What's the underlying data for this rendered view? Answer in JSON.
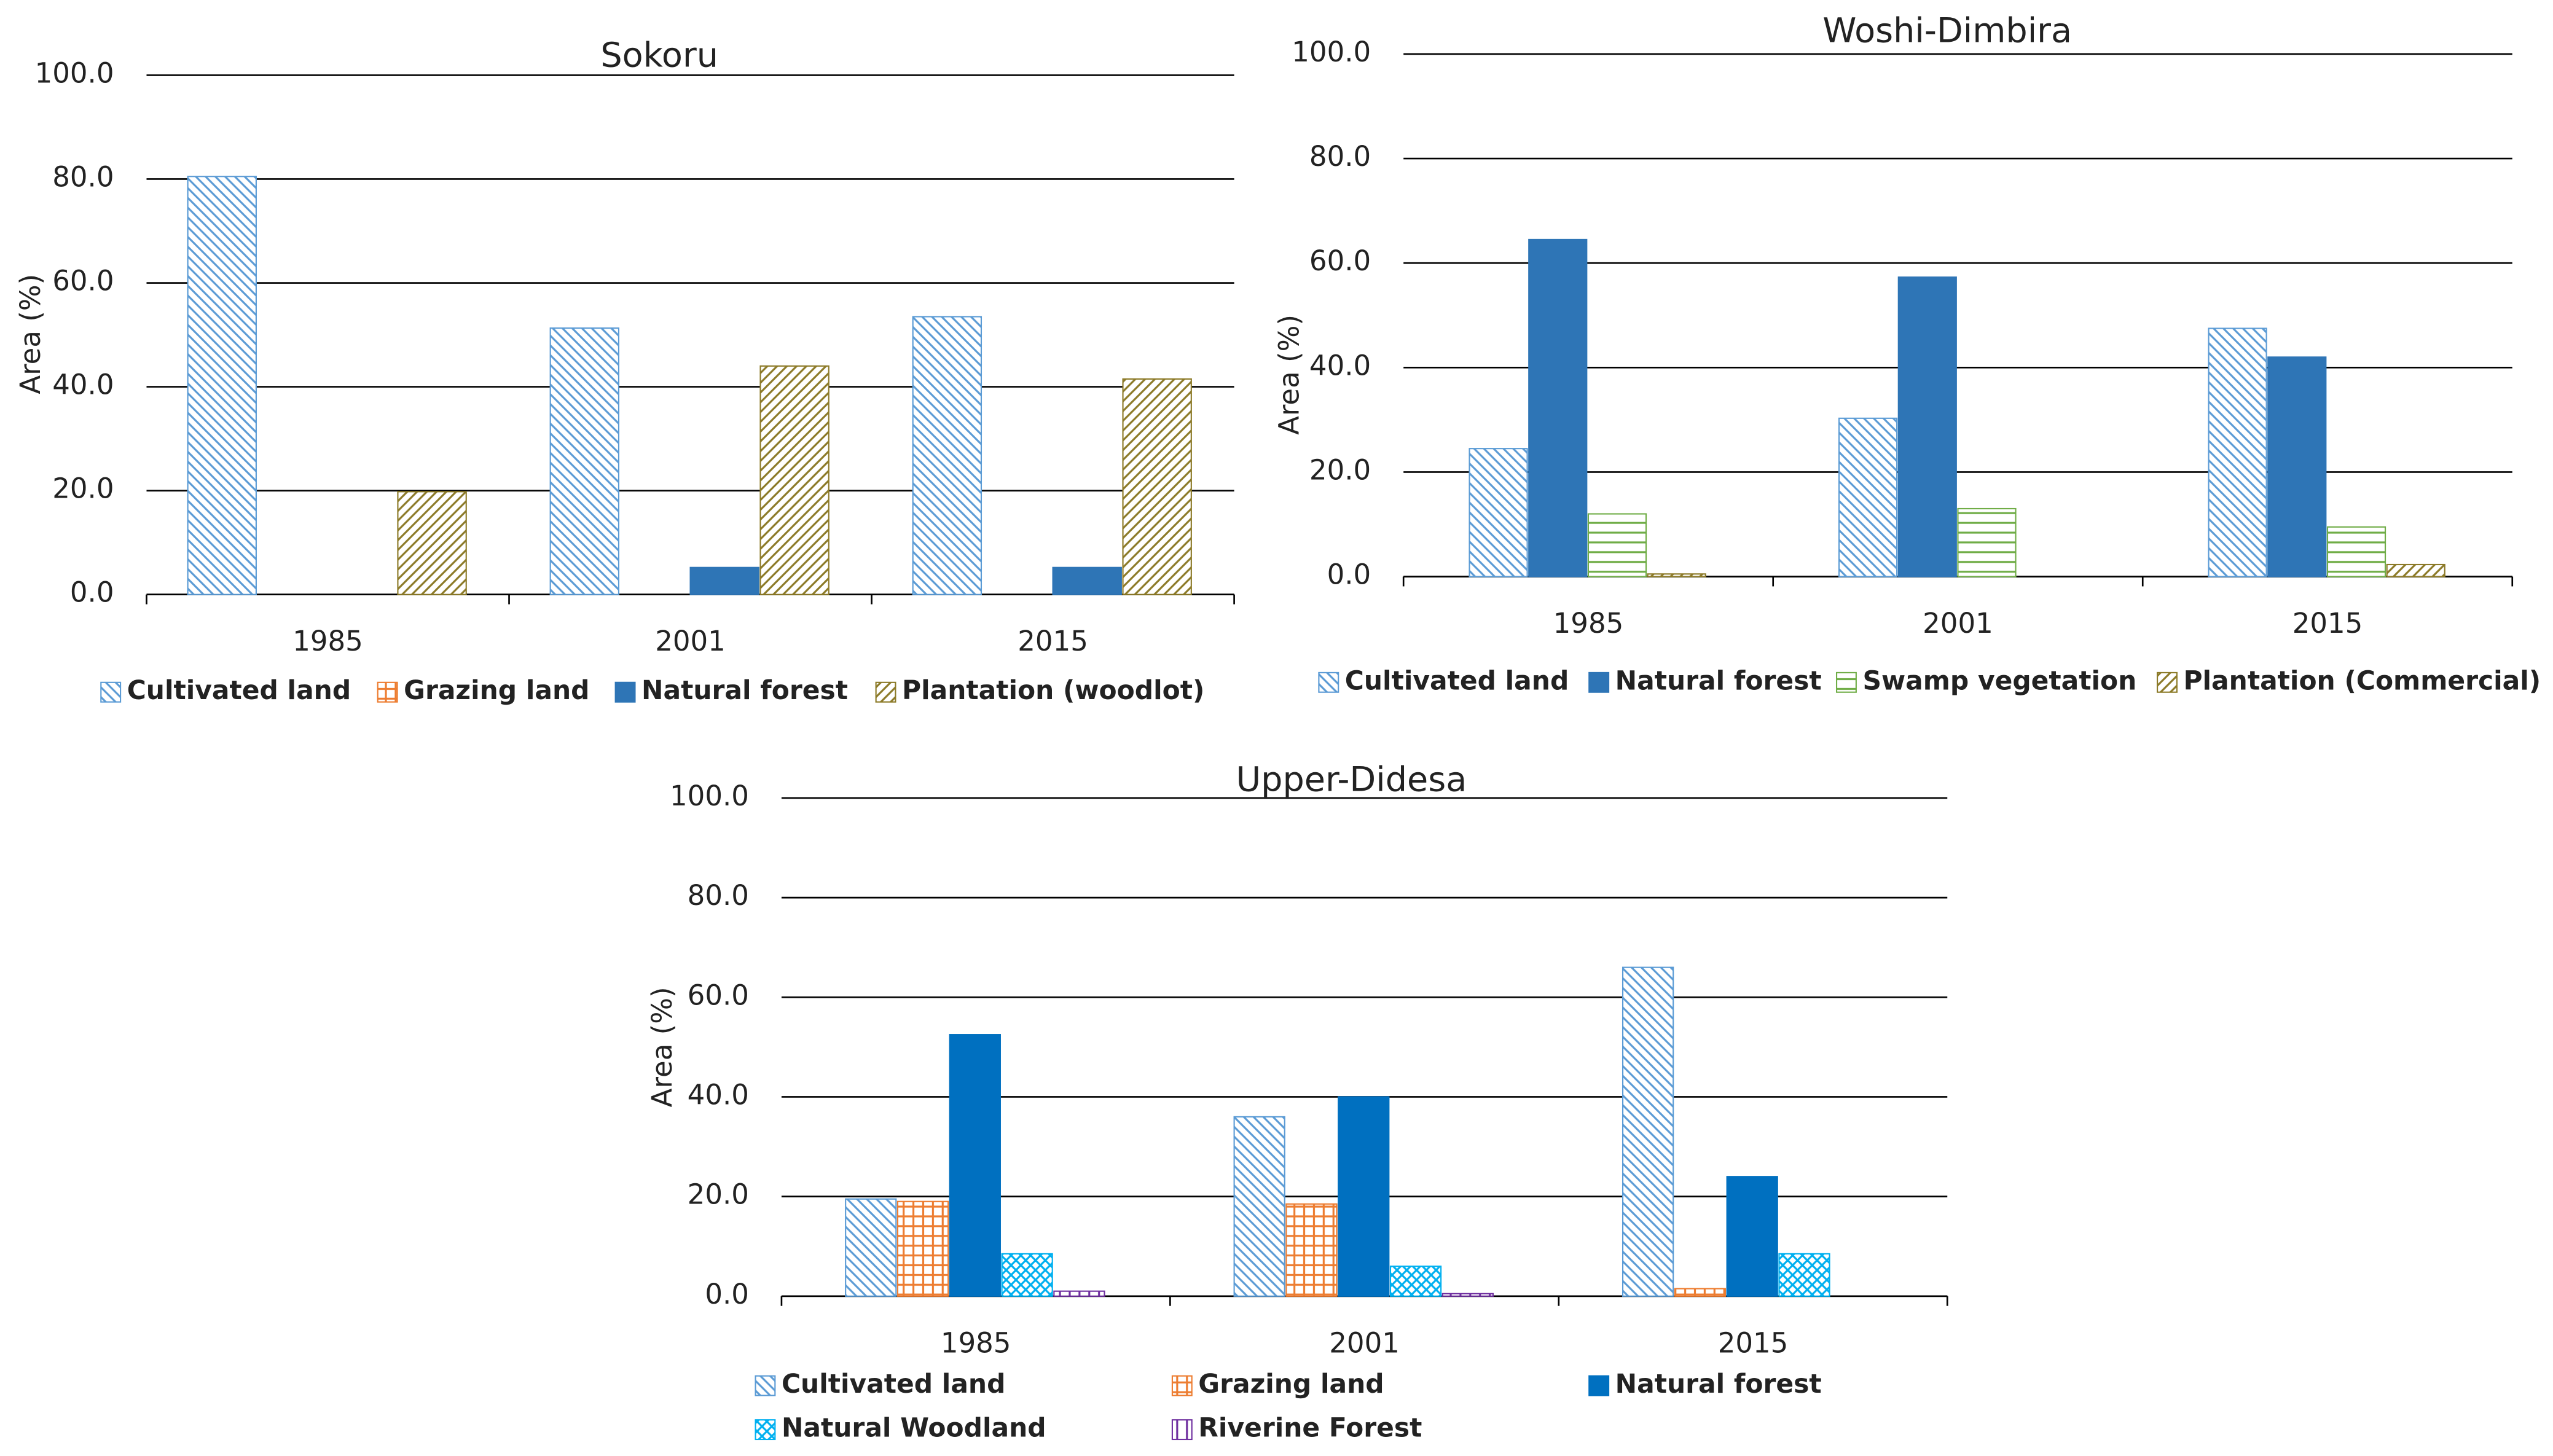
{
  "chart_data": [
    {
      "type": "bar",
      "title": "Sokoru",
      "y_label": "Area (%)",
      "categories": [
        "1985",
        "2001",
        "2015"
      ],
      "series": [
        {
          "name": "Cultivated land",
          "color": "#5b9bd5",
          "pattern": "diag-down",
          "values": [
            80.5,
            51.3,
            53.5
          ]
        },
        {
          "name": "Grazing land",
          "color": "#ed7d31",
          "pattern": "grid",
          "values": [
            0,
            0,
            0
          ]
        },
        {
          "name": "Natural forest",
          "color": "#2e75b6",
          "pattern": "solid",
          "values": [
            0,
            5.2,
            5.2
          ]
        },
        {
          "name": "Plantation (woodlot)",
          "color": "#8c7a28",
          "pattern": "diag-up",
          "values": [
            19.8,
            44,
            41.5
          ]
        }
      ],
      "ylim": [
        0,
        100
      ],
      "yticks": [
        {
          "value": 0,
          "label": "0.0"
        },
        {
          "value": 20,
          "label": "20.0"
        },
        {
          "value": 40,
          "label": "40.0"
        },
        {
          "value": 60,
          "label": "60.0"
        },
        {
          "value": 80,
          "label": "80.0"
        },
        {
          "value": 100,
          "label": "100.0"
        }
      ],
      "grid": true
    },
    {
      "type": "bar",
      "title": "Woshi-Dimbira",
      "y_label": "Area (%)",
      "categories": [
        "1985",
        "2001",
        "2015"
      ],
      "series": [
        {
          "name": "Cultivated land",
          "color": "#5b9bd5",
          "pattern": "diag-down",
          "values": [
            24.5,
            30.3,
            47.5
          ]
        },
        {
          "name": "Natural forest",
          "color": "#2e75b6",
          "pattern": "solid",
          "values": [
            64.5,
            57.3,
            42
          ]
        },
        {
          "name": "Swamp vegetation",
          "color": "#70ad47",
          "pattern": "hlines",
          "values": [
            12,
            13,
            9.5
          ]
        },
        {
          "name": "Plantation (Commercial)",
          "color": "#8c7a28",
          "pattern": "diag-up",
          "values": [
            0.5,
            0,
            2.3
          ]
        }
      ],
      "ylim": [
        0,
        100
      ],
      "yticks": [
        {
          "value": 0,
          "label": "0.0"
        },
        {
          "value": 20,
          "label": "20.0"
        },
        {
          "value": 40,
          "label": "40.0"
        },
        {
          "value": 60,
          "label": "60.0"
        },
        {
          "value": 80,
          "label": "80.0"
        },
        {
          "value": 100,
          "label": "100.0"
        }
      ],
      "grid": true
    },
    {
      "type": "bar",
      "title": "Upper-Didesa",
      "y_label": "Area (%)",
      "categories": [
        "1985",
        "2001",
        "2015"
      ],
      "series": [
        {
          "name": "Cultivated land",
          "color": "#5b9bd5",
          "pattern": "diag-down",
          "values": [
            19.5,
            36,
            66
          ]
        },
        {
          "name": "Grazing land",
          "color": "#ed7d31",
          "pattern": "grid",
          "values": [
            19,
            18.5,
            1.5
          ]
        },
        {
          "name": "Natural forest",
          "color": "#0070c0",
          "pattern": "solid",
          "values": [
            52.5,
            40,
            24
          ]
        },
        {
          "name": "Natural Woodland",
          "color": "#00b0f0",
          "pattern": "cross",
          "values": [
            8.5,
            6,
            8.5
          ]
        },
        {
          "name": "Riverine Forest",
          "color": "#7030a0",
          "pattern": "vlines",
          "values": [
            1,
            0.5,
            0
          ]
        }
      ],
      "ylim": [
        0,
        100
      ],
      "yticks": [
        {
          "value": 0,
          "label": "0.0"
        },
        {
          "value": 20,
          "label": "20.0"
        },
        {
          "value": 40,
          "label": "40.0"
        },
        {
          "value": 60,
          "label": "60.0"
        },
        {
          "value": 80,
          "label": "80.0"
        },
        {
          "value": 100,
          "label": "100.0"
        }
      ],
      "grid": true
    }
  ]
}
